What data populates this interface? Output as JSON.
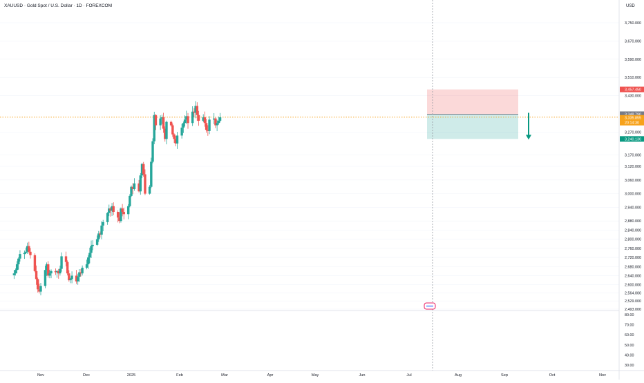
{
  "header": {
    "title": "XAUUSD · Gold Spot / U.S. Dollar · 1D · FOREXCOM"
  },
  "axis": {
    "currency": "USD"
  },
  "colors": {
    "up": "#26a69a",
    "down": "#ef5350",
    "price_line": "#f7a21b",
    "label_dark": "#787b86",
    "bg": "#ffffff",
    "grid": "#f0f3fa",
    "text": "#131722"
  },
  "icons": {
    "arrow": "arrow-down-icon",
    "events": "calendar-event-icon"
  },
  "chart_data": {
    "type": "candlestick",
    "symbol": "XAUUSD",
    "interval": "1D",
    "ylim": [
      2493,
      3820
    ],
    "y_ticks": [
      "3,750.000",
      "3,670.000",
      "3,590.000",
      "3,510.000",
      "3,430.000",
      "3,270.000",
      "3,170.000",
      "3,120.000",
      "3,060.000",
      "3,000.000",
      "2,940.000",
      "2,880.000",
      "2,840.000",
      "2,800.000",
      "2,760.000",
      "2,720.000",
      "2,680.000",
      "2,640.000",
      "2,600.000",
      "2,564.000",
      "2,529.000",
      "2,493.000"
    ],
    "x_ticks": [
      "Nov",
      "Dec",
      "2025",
      "Feb",
      "Mar",
      "Apr",
      "May",
      "Jun",
      "Jul",
      "Aug",
      "Sep",
      "Oct",
      "Nov"
    ],
    "price_labels": {
      "stop": "3,457.450",
      "entry": "3,348.790",
      "last": "3,335.855",
      "countdown": "20:14:30",
      "target": "3,240.130"
    },
    "closes": [
      2650,
      2665,
      2690,
      2715,
      2735,
      2740,
      2745,
      2770,
      2745,
      2730,
      2660,
      2625,
      2580,
      2570,
      2595,
      2665,
      2690,
      2640,
      2650,
      2660,
      2655,
      2660,
      2650,
      2670,
      2725,
      2700,
      2650,
      2620,
      2625,
      2640,
      2615,
      2635,
      2655,
      2650,
      2675,
      2690,
      2720,
      2740,
      2770,
      2775,
      2800,
      2825,
      2820,
      2860,
      2875,
      2915,
      2935,
      2925,
      2945,
      2920,
      2895,
      2880,
      2935,
      2920,
      2910,
      2945,
      2990,
      3030,
      3020,
      3045,
      3010,
      3080,
      3130,
      3085,
      3000,
      3030,
      3140,
      3230,
      3345,
      3300,
      3330,
      3335,
      3285,
      3240,
      3315,
      3300,
      3260,
      3240,
      3220,
      3255,
      3290,
      3310,
      3325,
      3340,
      3310,
      3360,
      3355,
      3385,
      3345,
      3320,
      3335,
      3310,
      3280,
      3275,
      3325,
      3330,
      3300,
      3310,
      3320,
      3335
    ]
  },
  "plot_labels": {
    "x_start_date": "2024-10-14"
  }
}
